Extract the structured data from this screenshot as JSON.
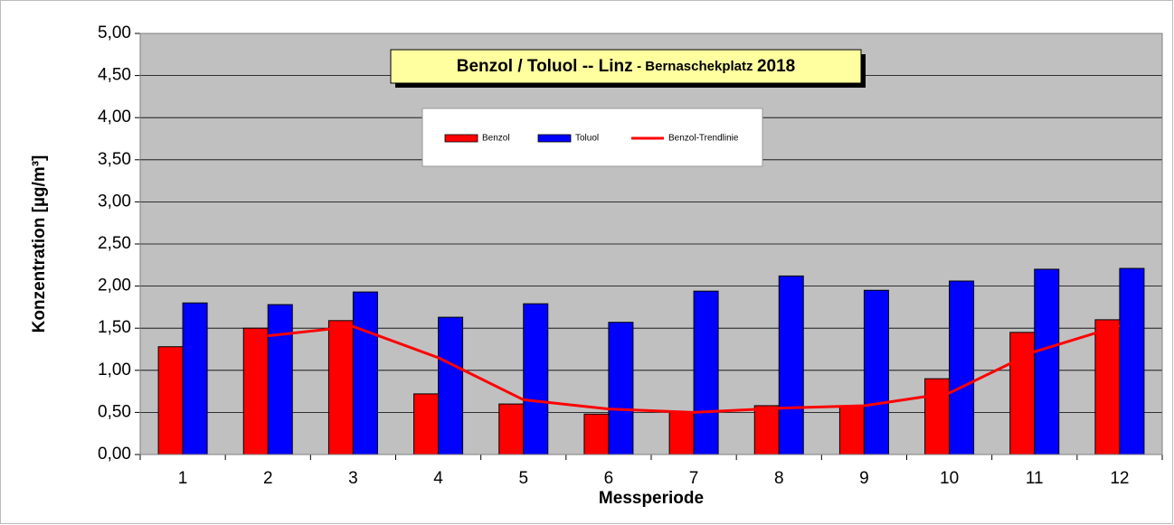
{
  "chart_data": {
    "type": "bar",
    "title": {
      "main": "Benzol / Toluol -- Linz",
      "sub": "- Bernaschekplatz",
      "year": "2018"
    },
    "x_label": "Messperiode",
    "y_label": "Konzentration [µg/m³]",
    "categories": [
      "1",
      "2",
      "3",
      "4",
      "5",
      "6",
      "7",
      "8",
      "9",
      "10",
      "11",
      "12"
    ],
    "series": [
      {
        "name": "Benzol",
        "type": "bar",
        "color": "#ff0000",
        "values": [
          1.28,
          1.5,
          1.59,
          0.72,
          0.6,
          0.48,
          0.5,
          0.58,
          0.57,
          0.9,
          1.45,
          1.6
        ]
      },
      {
        "name": "Toluol",
        "type": "bar",
        "color": "#0000ff",
        "values": [
          1.8,
          1.78,
          1.93,
          1.63,
          1.79,
          1.57,
          1.94,
          2.12,
          1.95,
          2.06,
          2.2,
          2.21
        ]
      },
      {
        "name": "Benzol-Trendlinie",
        "type": "line",
        "color": "#ff0000",
        "values": [
          null,
          1.41,
          1.52,
          1.15,
          0.65,
          0.54,
          0.5,
          0.55,
          0.58,
          0.73,
          1.22,
          1.53
        ]
      }
    ],
    "ylim": [
      0,
      5
    ],
    "yticks": [
      {
        "value": 0,
        "label": "0,00"
      },
      {
        "value": 0.5,
        "label": "0,50"
      },
      {
        "value": 1,
        "label": "1,00"
      },
      {
        "value": 1.5,
        "label": "1,50"
      },
      {
        "value": 2,
        "label": "2,00"
      },
      {
        "value": 2.5,
        "label": "2,50"
      },
      {
        "value": 3,
        "label": "3,00"
      },
      {
        "value": 3.5,
        "label": "3,50"
      },
      {
        "value": 4,
        "label": "4,00"
      },
      {
        "value": 4.5,
        "label": "4,50"
      },
      {
        "value": 5,
        "label": "5,00"
      }
    ],
    "grid": true
  }
}
